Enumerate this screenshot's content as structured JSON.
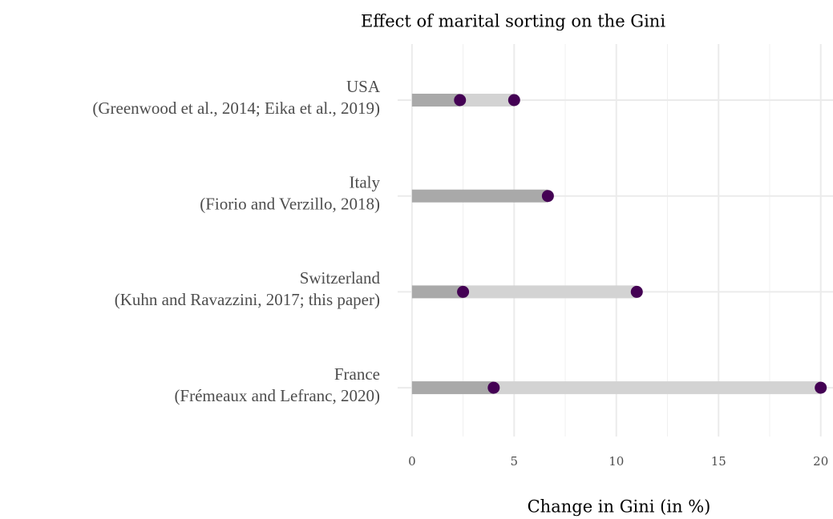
{
  "chart_data": {
    "type": "dumbbell",
    "title": "Effect of marital sorting on the Gini",
    "x_label": "Change in Gini (in %)",
    "categories": [
      {
        "name": "USA",
        "source": "(Greenwood et al., 2014; Eika et al., 2019)"
      },
      {
        "name": "Italy",
        "source": "(Fiorio and Verzillo, 2018)"
      },
      {
        "name": "Switzerland",
        "source": "(Kuhn and Ravazzini, 2017; this paper)"
      },
      {
        "name": "France",
        "source": "(Frémeaux and Lefranc, 2020)"
      }
    ],
    "series": [
      {
        "color": "#a9a9a9",
        "values": [
          2.35,
          6.65,
          2.5,
          4.0
        ]
      },
      {
        "color": "#d3d3d3",
        "values": [
          5.0,
          null,
          11.0,
          20.0
        ]
      }
    ],
    "point_color": "#440154",
    "xlim": [
      -0.7,
      20.6
    ],
    "xticks": [
      0,
      5,
      10,
      15,
      20
    ],
    "minor_xticks": [
      2.5,
      7.5,
      12.5,
      17.5
    ],
    "grid": true
  }
}
